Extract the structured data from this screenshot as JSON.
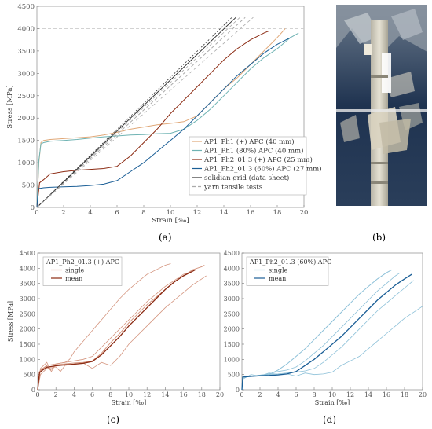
{
  "panel_labels": {
    "a": "(a)",
    "b": "(b)",
    "c": "(c)",
    "d": "(d)"
  },
  "chart_data": [
    {
      "type": "line",
      "panel": "a",
      "xlabel": "Strain [‰]",
      "ylabel": "Stress [MPa]",
      "xlim": [
        0,
        20
      ],
      "ylim": [
        0,
        4500
      ],
      "xticks": [
        0,
        2,
        4,
        6,
        8,
        10,
        12,
        14,
        16,
        18,
        20
      ],
      "yticks": [
        0,
        500,
        1000,
        1500,
        2000,
        2500,
        3000,
        3500,
        4000,
        4500
      ],
      "grid": false,
      "legend": "bottom-right",
      "reference_line_y": 4000,
      "series": [
        {
          "name": "AP1_Ph1 (+) APC (40 mm)",
          "color": "#e0a878",
          "dash": "",
          "x": [
            0,
            0.15,
            0.3,
            0.5,
            1,
            2,
            3,
            4,
            5,
            6,
            7,
            8,
            9,
            10,
            11,
            12,
            13,
            14,
            15,
            16,
            17,
            18,
            18.6
          ],
          "y": [
            0,
            1000,
            1450,
            1500,
            1520,
            1540,
            1560,
            1580,
            1620,
            1680,
            1750,
            1800,
            1850,
            1880,
            1920,
            2050,
            2350,
            2650,
            2900,
            3200,
            3500,
            3800,
            4000
          ]
        },
        {
          "name": "AP1_Ph1 (80%) APC (40 mm)",
          "color": "#6fb3b3",
          "dash": "",
          "x": [
            0,
            0.15,
            0.3,
            0.5,
            1,
            2,
            3,
            4,
            5,
            6,
            7,
            8,
            9,
            10,
            11,
            12,
            13,
            14,
            15,
            16,
            17,
            18,
            19,
            19.6
          ],
          "y": [
            0,
            1050,
            1420,
            1450,
            1480,
            1500,
            1520,
            1550,
            1580,
            1600,
            1620,
            1630,
            1650,
            1660,
            1750,
            1950,
            2200,
            2500,
            2800,
            3100,
            3350,
            3550,
            3800,
            3900
          ]
        },
        {
          "name": "AP1_Ph2_01.3 (+) APC (25 mm)",
          "color": "#8b2a12",
          "dash": "",
          "x": [
            0,
            0.2,
            0.5,
            1,
            2,
            3,
            4,
            5,
            6,
            7,
            8,
            9,
            10,
            11,
            12,
            13,
            14,
            15,
            16,
            17,
            17.4
          ],
          "y": [
            0,
            550,
            620,
            750,
            800,
            830,
            850,
            870,
            920,
            1150,
            1450,
            1750,
            2100,
            2400,
            2700,
            3000,
            3300,
            3550,
            3750,
            3900,
            3950
          ]
        },
        {
          "name": "AP1_Ph2_01.3 (60%) APC (27 mm)",
          "color": "#1a5e96",
          "dash": "",
          "x": [
            0,
            0.1,
            0.5,
            1,
            2,
            3,
            4,
            5,
            6,
            7,
            8,
            9,
            10,
            11,
            12,
            13,
            14,
            15,
            16,
            17,
            18,
            19
          ],
          "y": [
            0,
            420,
            440,
            450,
            460,
            470,
            490,
            520,
            600,
            800,
            1000,
            1250,
            1500,
            1750,
            2050,
            2350,
            2650,
            2950,
            3200,
            3450,
            3650,
            3800
          ]
        },
        {
          "name": "solidian grid (data sheet)",
          "color": "#333333",
          "dash": "",
          "x": [
            0,
            14.9
          ],
          "y": [
            0,
            4250
          ]
        },
        {
          "name": "yarn tensile tests",
          "color": "#aaaaaa",
          "dash": "4,3",
          "x": [
            0,
            15.6
          ],
          "y": [
            0,
            4250
          ]
        }
      ],
      "extra_lines": [
        {
          "color": "#333333",
          "dash": "2,2",
          "x": [
            0,
            14.6
          ],
          "y": [
            0,
            4250
          ]
        },
        {
          "color": "#aaaaaa",
          "dash": "4,3",
          "x": [
            0,
            15.2
          ],
          "y": [
            0,
            4250
          ]
        },
        {
          "color": "#aaaaaa",
          "dash": "4,3",
          "x": [
            0,
            16.2
          ],
          "y": [
            0,
            4250
          ]
        }
      ]
    },
    {
      "type": "line",
      "panel": "c",
      "xlabel": "Strain [‰]",
      "ylabel": "Stress [MPa]",
      "xlim": [
        0,
        20
      ],
      "ylim": [
        0,
        4500
      ],
      "xticks": [
        0,
        2,
        4,
        6,
        8,
        10,
        12,
        14,
        16,
        18,
        20
      ],
      "yticks": [
        0,
        500,
        1000,
        1500,
        2000,
        2500,
        3000,
        3500,
        4000,
        4500
      ],
      "grid": false,
      "legend": "top-left",
      "legend_title": "AP1_Ph2_01.3 (+) APC",
      "series": [
        {
          "name": "single",
          "color": "#d4957f",
          "x": [
            0,
            0.2,
            0.6,
            1,
            1.4,
            2,
            3,
            4,
            5,
            6,
            7,
            8,
            9,
            10,
            11,
            12,
            13,
            14,
            15,
            16,
            17,
            18,
            18.3
          ],
          "y": [
            0,
            600,
            700,
            780,
            650,
            820,
            850,
            880,
            900,
            950,
            1200,
            1550,
            1850,
            2200,
            2500,
            2800,
            3050,
            3300,
            3550,
            3750,
            3950,
            4050,
            4100
          ]
        },
        {
          "name": "mean",
          "color": "#8b2a12",
          "x": [
            0,
            0.2,
            0.5,
            1,
            2,
            3,
            4,
            5,
            6,
            7,
            8,
            9,
            10,
            11,
            12,
            13,
            14,
            15,
            16,
            17,
            17.3
          ],
          "y": [
            0,
            560,
            640,
            740,
            790,
            820,
            840,
            870,
            930,
            1150,
            1450,
            1750,
            2100,
            2400,
            2700,
            3000,
            3300,
            3550,
            3750,
            3900,
            3950
          ]
        }
      ],
      "extra_lines": [
        {
          "color": "#d4957f",
          "x": [
            0,
            0.3,
            1,
            2,
            3,
            3.5,
            4,
            5,
            6,
            7,
            8,
            9,
            10,
            11,
            12,
            13,
            14,
            14.6
          ],
          "y": [
            0,
            650,
            800,
            850,
            900,
            1000,
            1250,
            1600,
            1950,
            2300,
            2650,
            3000,
            3300,
            3550,
            3800,
            3950,
            4100,
            4150
          ]
        },
        {
          "color": "#d4957f",
          "x": [
            0,
            0.3,
            1,
            2,
            2.5,
            3,
            4,
            5,
            6,
            7,
            8,
            9,
            10,
            11,
            12,
            13,
            14,
            15,
            16,
            17,
            18,
            18.5
          ],
          "y": [
            0,
            500,
            700,
            750,
            600,
            800,
            850,
            880,
            700,
            900,
            800,
            1100,
            1500,
            1800,
            2100,
            2400,
            2700,
            2950,
            3200,
            3450,
            3650,
            3750
          ]
        },
        {
          "color": "#d4957f",
          "x": [
            0,
            0.3,
            1,
            1.5,
            2,
            3,
            4,
            5,
            6,
            7,
            8,
            9,
            10,
            11,
            12,
            13,
            14,
            15,
            16,
            17
          ],
          "y": [
            0,
            700,
            900,
            600,
            850,
            900,
            950,
            1000,
            1100,
            1400,
            1700,
            2000,
            2300,
            2600,
            2900,
            3150,
            3400,
            3600,
            3800,
            3900
          ]
        }
      ]
    },
    {
      "type": "line",
      "panel": "d",
      "xlabel": "Strain [‰]",
      "ylabel": "",
      "xlim": [
        0,
        20
      ],
      "ylim": [
        0,
        4500
      ],
      "xticks": [
        0,
        2,
        4,
        6,
        8,
        10,
        12,
        14,
        16,
        18,
        20
      ],
      "yticks": [
        0,
        500,
        1000,
        1500,
        2000,
        2500,
        3000,
        3500,
        4000,
        4500
      ],
      "grid": false,
      "legend": "top-left",
      "legend_title": "AP1_Ph2_01.3 (60%) APC",
      "series": [
        {
          "name": "single",
          "color": "#8cc0d8",
          "x": [
            0,
            0.1,
            1,
            2,
            3,
            4,
            5,
            6,
            7,
            8,
            9,
            10,
            11,
            12,
            13,
            14,
            15,
            16,
            16.6
          ],
          "y": [
            0,
            420,
            450,
            470,
            500,
            650,
            850,
            1100,
            1350,
            1650,
            1950,
            2250,
            2550,
            2850,
            3150,
            3400,
            3650,
            3850,
            3950
          ]
        },
        {
          "name": "mean",
          "color": "#1a5e96",
          "x": [
            0,
            0.1,
            1,
            2,
            3,
            4,
            5,
            6,
            7,
            8,
            9,
            10,
            11,
            12,
            13,
            14,
            15,
            16,
            17,
            18,
            18.8
          ],
          "y": [
            0,
            420,
            440,
            460,
            470,
            490,
            520,
            600,
            800,
            1000,
            1250,
            1500,
            1750,
            2050,
            2350,
            2650,
            2950,
            3200,
            3450,
            3650,
            3800
          ]
        }
      ],
      "extra_lines": [
        {
          "color": "#8cc0d8",
          "x": [
            0,
            0.1,
            1,
            2,
            3,
            4,
            5,
            6,
            7,
            8,
            9,
            10,
            11,
            12,
            13,
            14,
            15,
            16,
            17,
            17.5
          ],
          "y": [
            0,
            400,
            450,
            480,
            520,
            600,
            650,
            750,
            950,
            1200,
            1450,
            1750,
            2050,
            2350,
            2650,
            2950,
            3250,
            3500,
            3750,
            3850
          ]
        },
        {
          "color": "#8cc0d8",
          "x": [
            0,
            0.1,
            1,
            2,
            3,
            4,
            5,
            6,
            7,
            8,
            9,
            10,
            11,
            12,
            13,
            14,
            15,
            16,
            17,
            18,
            19
          ],
          "y": [
            0,
            400,
            450,
            480,
            500,
            520,
            550,
            580,
            620,
            700,
            900,
            1150,
            1400,
            1700,
            2000,
            2300,
            2600,
            2850,
            3100,
            3350,
            3600
          ]
        },
        {
          "color": "#8cc0d8",
          "x": [
            0,
            0.1,
            1,
            2,
            3,
            4,
            5,
            6,
            7,
            8,
            9,
            10,
            11,
            12,
            13,
            14,
            15,
            16,
            17,
            18,
            19,
            20
          ],
          "y": [
            0,
            350,
            500,
            450,
            550,
            500,
            520,
            450,
            550,
            500,
            520,
            580,
            800,
            950,
            1100,
            1350,
            1600,
            1850,
            2100,
            2350,
            2550,
            2750
          ]
        }
      ]
    }
  ]
}
